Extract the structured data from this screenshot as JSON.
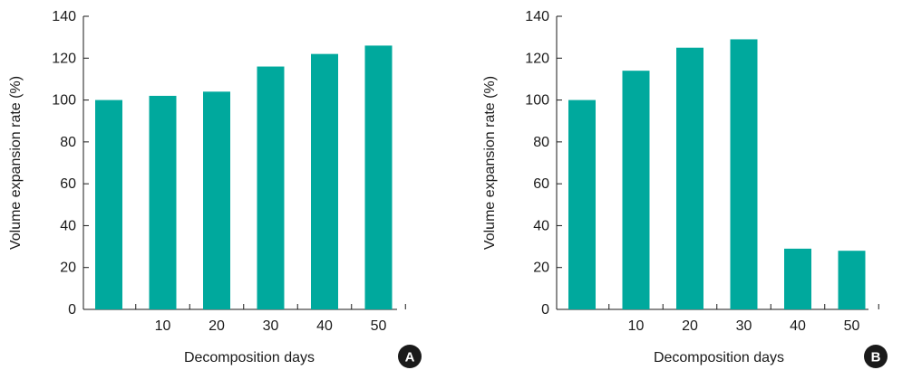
{
  "colors": {
    "bar": "#00a99d",
    "axis": "#1a1a1a",
    "badge": "#1a1a1a",
    "badge_text": "#ffffff"
  },
  "chart_data": [
    {
      "type": "bar",
      "panel_label": "A",
      "categories": [
        "",
        "10",
        "20",
        "30",
        "40",
        "50"
      ],
      "values": [
        100,
        102,
        104,
        116,
        122,
        126
      ],
      "xlabel": "Decomposition days",
      "ylabel": "Volume expansion rate (%)",
      "ylim": [
        0,
        140
      ],
      "yticks": [
        0,
        20,
        40,
        60,
        80,
        100,
        120,
        140
      ],
      "grid": false
    },
    {
      "type": "bar",
      "panel_label": "B",
      "categories": [
        "",
        "10",
        "20",
        "30",
        "40",
        "50"
      ],
      "values": [
        100,
        114,
        125,
        129,
        29,
        28
      ],
      "xlabel": "Decomposition days",
      "ylabel": "Volume expansion rate (%)",
      "ylim": [
        0,
        140
      ],
      "yticks": [
        0,
        20,
        40,
        60,
        80,
        100,
        120,
        140
      ],
      "grid": false
    }
  ]
}
